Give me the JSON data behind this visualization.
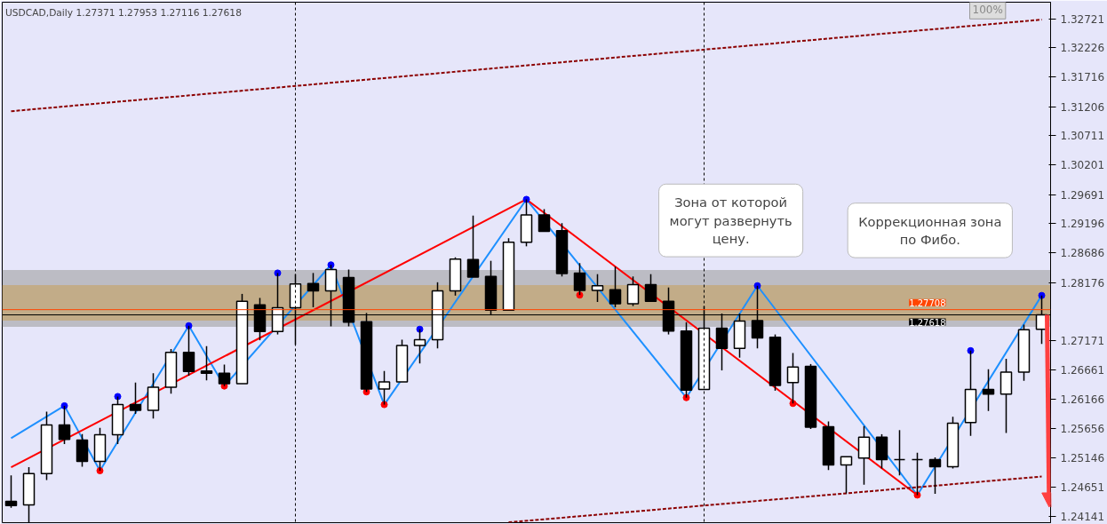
{
  "chart_data": {
    "type": "candlestick",
    "title": "USDCAD,Daily 1.27371 1.27953 1.27116 1.27618",
    "categories": [
      null,
      null,
      null,
      null,
      null,
      null,
      null,
      null,
      null,
      null,
      null,
      null,
      null,
      null,
      null,
      null,
      null,
      null,
      null,
      null,
      null,
      null,
      null,
      null,
      null,
      null,
      null,
      null,
      null,
      null,
      null,
      null,
      null,
      null,
      null,
      null,
      null,
      null,
      null,
      null,
      null,
      null,
      null,
      null,
      null,
      null,
      null,
      null,
      null,
      null,
      null,
      null,
      null,
      null,
      null,
      null,
      null,
      null,
      null
    ],
    "ohlc": [
      [
        1.244,
        1.2485,
        1.2429,
        1.2433
      ],
      [
        1.2434,
        1.2499,
        1.2404,
        1.2488
      ],
      [
        1.2488,
        1.2595,
        1.2477,
        1.2572
      ],
      [
        1.2572,
        1.2605,
        1.2539,
        1.2547
      ],
      [
        1.2546,
        1.2556,
        1.25,
        1.2509
      ],
      [
        1.2509,
        1.2567,
        1.2493,
        1.2555
      ],
      [
        1.2555,
        1.2621,
        1.2539,
        1.2607
      ],
      [
        1.2607,
        1.2645,
        1.2591,
        1.2597
      ],
      [
        1.2597,
        1.2661,
        1.2583,
        1.2637
      ],
      [
        1.2637,
        1.2703,
        1.2626,
        1.2697
      ],
      [
        1.2697,
        1.2743,
        1.2657,
        1.2664
      ],
      [
        1.2665,
        1.2708,
        1.2649,
        1.2661
      ],
      [
        1.2661,
        1.2676,
        1.2639,
        1.2643
      ],
      [
        1.2643,
        1.2798,
        1.2643,
        1.2785
      ],
      [
        1.2779,
        1.2791,
        1.2718,
        1.2733
      ],
      [
        1.2733,
        1.2834,
        1.2728,
        1.2774
      ],
      [
        1.2774,
        1.2832,
        1.271,
        1.2815
      ],
      [
        1.2816,
        1.2834,
        1.2775,
        1.2803
      ],
      [
        1.2803,
        1.2848,
        1.2742,
        1.284
      ],
      [
        1.2826,
        1.284,
        1.2742,
        1.2749
      ],
      [
        1.275,
        1.2765,
        1.2629,
        1.2634
      ],
      [
        1.2634,
        1.2665,
        1.2607,
        1.2646
      ],
      [
        1.2646,
        1.2719,
        1.2646,
        1.2709
      ],
      [
        1.2709,
        1.2737,
        1.2678,
        1.2719
      ],
      [
        1.2719,
        1.2818,
        1.2704,
        1.2803
      ],
      [
        1.2803,
        1.2861,
        1.2795,
        1.2858
      ],
      [
        1.2857,
        1.2933,
        1.2827,
        1.2827
      ],
      [
        1.2828,
        1.2855,
        1.2761,
        1.277
      ],
      [
        1.277,
        1.2894,
        1.277,
        1.2887
      ],
      [
        1.2887,
        1.2961,
        1.288,
        1.2934
      ],
      [
        1.2934,
        1.2944,
        1.2906,
        1.2906
      ],
      [
        1.2907,
        1.292,
        1.2828,
        1.2833
      ],
      [
        1.2834,
        1.2851,
        1.2796,
        1.2804
      ],
      [
        1.2804,
        1.2832,
        1.2784,
        1.2812
      ],
      [
        1.2805,
        1.2845,
        1.2775,
        1.2781
      ],
      [
        1.2781,
        1.2828,
        1.2777,
        1.2814
      ],
      [
        1.2814,
        1.2832,
        1.2785,
        1.2785
      ],
      [
        1.2785,
        1.2809,
        1.2728,
        1.2734
      ],
      [
        1.2734,
        1.2749,
        1.2619,
        1.2632
      ],
      [
        1.2633,
        1.2777,
        1.2633,
        1.2739
      ],
      [
        1.2739,
        1.2764,
        1.2666,
        1.2704
      ],
      [
        1.2704,
        1.2764,
        1.2688,
        1.2751
      ],
      [
        1.2752,
        1.2812,
        1.2704,
        1.2722
      ],
      [
        1.2723,
        1.2728,
        1.2631,
        1.264
      ],
      [
        1.2645,
        1.2696,
        1.2609,
        1.2672
      ],
      [
        1.2673,
        1.2677,
        1.2565,
        1.2568
      ],
      [
        1.2569,
        1.2578,
        1.2494,
        1.2503
      ],
      [
        1.2503,
        1.2517,
        1.2454,
        1.2517
      ],
      [
        1.2515,
        1.257,
        1.2469,
        1.2551
      ],
      [
        1.2551,
        1.2556,
        1.2497,
        1.2512
      ],
      [
        1.2512,
        1.2563,
        1.2485,
        1.2512
      ],
      [
        1.2512,
        1.2524,
        1.2451,
        1.2512
      ],
      [
        1.2512,
        1.2516,
        1.2453,
        1.25
      ],
      [
        1.25,
        1.2586,
        1.2497,
        1.2575
      ],
      [
        1.2576,
        1.27,
        1.2553,
        1.2633
      ],
      [
        1.2633,
        1.2668,
        1.2596,
        1.2625
      ],
      [
        1.2625,
        1.2686,
        1.2558,
        1.2663
      ],
      [
        1.2663,
        1.2745,
        1.2648,
        1.2736
      ],
      [
        1.27371,
        1.27953,
        1.27116,
        1.27618
      ]
    ],
    "series": [
      {
        "type": "line",
        "color": "#1e90ff",
        "values": [
          1.2549,
          null,
          null,
          1.2605,
          null,
          1.2493,
          null,
          null,
          null,
          null,
          1.2743,
          null,
          1.2639,
          null,
          null,
          null,
          null,
          null,
          1.2848,
          null,
          null,
          1.2607,
          null,
          null,
          null,
          null,
          null,
          null,
          null,
          1.2961,
          null,
          null,
          null,
          null,
          null,
          null,
          null,
          null,
          1.2619,
          null,
          null,
          null,
          1.2812,
          null,
          null,
          null,
          null,
          null,
          null,
          null,
          null,
          1.2451,
          null,
          null,
          null,
          null,
          null,
          null,
          1.27953
        ]
      },
      {
        "type": "line",
        "color": "#ff0000",
        "values": [
          1.2499,
          null,
          null,
          null,
          null,
          null,
          null,
          null,
          null,
          null,
          null,
          null,
          null,
          null,
          null,
          null,
          null,
          null,
          null,
          null,
          null,
          null,
          null,
          null,
          null,
          null,
          null,
          null,
          null,
          1.2961,
          null,
          null,
          null,
          null,
          null,
          null,
          null,
          null,
          null,
          null,
          null,
          null,
          null,
          null,
          null,
          null,
          null,
          null,
          null,
          null,
          null,
          1.2451,
          null,
          null,
          null,
          null,
          null,
          null,
          null
        ]
      },
      {
        "type": "line",
        "color": "#8b0000",
        "line_style": "dashed",
        "values": [
          1.3113,
          null,
          null,
          null,
          null,
          null,
          null,
          null,
          null,
          null,
          null,
          null,
          null,
          null,
          null,
          null,
          null,
          null,
          null,
          null,
          null,
          null,
          null,
          null,
          null,
          null,
          null,
          null,
          null,
          null,
          null,
          null,
          null,
          null,
          null,
          null,
          null,
          null,
          null,
          null,
          null,
          null,
          null,
          null,
          null,
          null,
          null,
          null,
          null,
          null,
          null,
          null,
          null,
          null,
          null,
          null,
          null,
          null,
          1.3271
        ]
      },
      {
        "type": "line",
        "color": "#8b0000",
        "line_style": "dashed",
        "values": [
          null,
          null,
          null,
          null,
          null,
          null,
          null,
          null,
          null,
          null,
          null,
          null,
          null,
          null,
          null,
          null,
          null,
          null,
          null,
          null,
          null,
          null,
          null,
          null,
          null,
          null,
          null,
          null,
          1.2404,
          null,
          null,
          null,
          null,
          null,
          null,
          null,
          null,
          null,
          null,
          null,
          null,
          null,
          null,
          null,
          null,
          null,
          null,
          null,
          null,
          null,
          null,
          null,
          null,
          null,
          null,
          null,
          null,
          null,
          1.2483
        ]
      },
      {
        "type": "scatter",
        "color": "#0000ff",
        "marker": "circle",
        "values": [
          null,
          null,
          null,
          1.2605,
          null,
          null,
          1.2621,
          null,
          null,
          null,
          1.2743,
          null,
          null,
          null,
          null,
          1.2834,
          null,
          null,
          1.2848,
          null,
          null,
          null,
          null,
          1.2737,
          null,
          null,
          null,
          null,
          null,
          1.2961,
          null,
          null,
          null,
          null,
          null,
          null,
          null,
          null,
          null,
          null,
          null,
          null,
          1.2812,
          null,
          null,
          null,
          null,
          null,
          null,
          null,
          null,
          null,
          null,
          null,
          1.27,
          null,
          null,
          null,
          1.27953
        ]
      },
      {
        "type": "scatter",
        "color": "#ff0000",
        "marker": "circle",
        "values": [
          null,
          null,
          null,
          null,
          null,
          1.2493,
          null,
          null,
          null,
          null,
          null,
          null,
          1.2639,
          null,
          null,
          null,
          null,
          null,
          null,
          null,
          1.2629,
          1.2607,
          null,
          null,
          null,
          null,
          null,
          null,
          null,
          null,
          null,
          null,
          1.2796,
          null,
          null,
          null,
          null,
          null,
          1.2619,
          null,
          null,
          null,
          null,
          null,
          1.2609,
          null,
          null,
          null,
          null,
          null,
          null,
          1.2451,
          null,
          null,
          null,
          null,
          null,
          null,
          null
        ]
      }
    ],
    "ylim": [
      1.24034,
      1.3301
    ],
    "yticks": [
      1.32721,
      1.32226,
      1.31716,
      1.31206,
      1.30711,
      1.30201,
      1.29691,
      1.29196,
      1.28686,
      1.28176,
      1.27171,
      1.26661,
      1.26166,
      1.25656,
      1.25146,
      1.24651,
      1.24141
    ],
    "tick_labels": "y",
    "ref_lines": [
      {
        "axis": "y",
        "value": 1.27708,
        "label": "1.27708",
        "color": "#ff4500"
      },
      {
        "axis": "y",
        "value": 1.27618,
        "label": "1.27618",
        "color": "#000000"
      }
    ],
    "bands": [
      {
        "axis": "y",
        "from": 1.2752,
        "to": 1.2813,
        "label": "Зона от которой могут развернуть цену.",
        "color": "#ffa500"
      },
      {
        "axis": "y",
        "from": 1.2741,
        "to": 1.2839,
        "label": "Коррекционная зона по Фибо.",
        "color": "#a0a0a0"
      }
    ],
    "annotations": [
      "100%"
    ]
  }
}
